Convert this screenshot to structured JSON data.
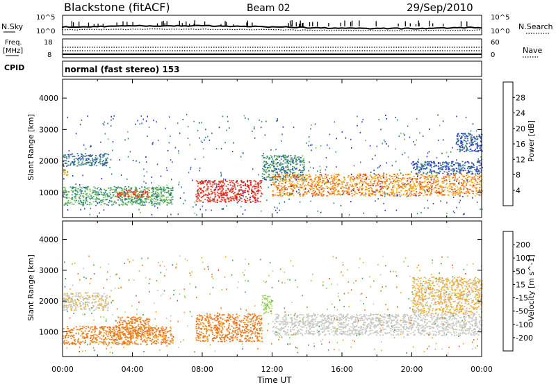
{
  "header": {
    "station": "Blackstone (fitACF)",
    "beam": "Beam 02",
    "date": "29/Sep/2010"
  },
  "noise_panel": {
    "left_label": "N.Sky",
    "right_label": "N.Search",
    "tick_top": "10^5",
    "tick_bottom": "10^0"
  },
  "freq_panel": {
    "left_label": "Freq.",
    "left_unit": "[MHz]",
    "tick_top": "18",
    "tick_bottom": "8",
    "right_label": "Nave",
    "right_tick_top": "60",
    "right_tick_bottom": "0"
  },
  "cpid_panel": {
    "label": "CPID",
    "mode": "normal (fast stereo) 153"
  },
  "colorbars": {
    "power": {
      "label": "Power [dB]",
      "ticks": [
        "4",
        "8",
        "12",
        "16",
        "20",
        "24",
        "28"
      ],
      "colors": [
        "#1f2fdc",
        "#3350a8",
        "#2d8a73",
        "#6abb55",
        "#f2c21c",
        "#ef8d1a",
        "#e24420",
        "#e0141c"
      ]
    },
    "velocity": {
      "label": "Velocity [m s^-1]",
      "ticks": [
        "200",
        "100",
        "50",
        "15",
        "-15",
        "-50",
        "-100",
        "-200"
      ],
      "colors": [
        "#2030c4",
        "#3b7f8e",
        "#3fa243",
        "#96d45a",
        "#c6c6c0",
        "#f0aa22",
        "#ec7418",
        "#e5421a",
        "#e0101a"
      ]
    }
  },
  "chart_data": [
    {
      "type": "heatmap",
      "title": "Power",
      "xlabel": "Time UT",
      "ylabel": "Slant Range [km]",
      "xlim": [
        "00:00",
        "24:00"
      ],
      "x_ticks": [
        "00:00",
        "04:00",
        "08:00",
        "12:00",
        "16:00",
        "20:00",
        "00:00"
      ],
      "ylim": [
        200,
        4600
      ],
      "y_ticks": [
        1000,
        2000,
        3000,
        4000
      ],
      "regions": [
        {
          "t0": 0.0,
          "t1": 2.6,
          "r0": 1850,
          "r1": 2250,
          "dB": 8
        },
        {
          "t0": 0.0,
          "t1": 0.3,
          "r0": 1500,
          "r1": 1750,
          "dB": 20
        },
        {
          "t0": 0.0,
          "t1": 6.3,
          "r0": 600,
          "r1": 1200,
          "dB": 12
        },
        {
          "t0": 3.0,
          "t1": 5.0,
          "r0": 850,
          "r1": 1100,
          "dB": 26
        },
        {
          "t0": 7.6,
          "t1": 11.4,
          "r0": 700,
          "r1": 1400,
          "dB": 28
        },
        {
          "t0": 11.4,
          "t1": 13.8,
          "r0": 1400,
          "r1": 2200,
          "dB": 10
        },
        {
          "t0": 12.0,
          "t1": 24.0,
          "r0": 900,
          "r1": 1600,
          "dB": 22
        },
        {
          "t0": 20.0,
          "t1": 24.0,
          "r0": 1600,
          "r1": 2000,
          "dB": 6
        },
        {
          "t0": 22.5,
          "t1": 24.0,
          "r0": 2300,
          "r1": 2900,
          "dB": 6
        }
      ]
    },
    {
      "type": "heatmap",
      "title": "Velocity",
      "xlabel": "Time UT",
      "ylabel": "Slant Range [km]",
      "xlim": [
        "00:00",
        "24:00"
      ],
      "x_ticks": [
        "00:00",
        "04:00",
        "08:00",
        "12:00",
        "16:00",
        "20:00",
        "00:00"
      ],
      "ylim": [
        200,
        4600
      ],
      "y_ticks": [
        1000,
        2000,
        3000,
        4000
      ],
      "regions": [
        {
          "t0": 0.0,
          "t1": 2.6,
          "r0": 1700,
          "r1": 2300,
          "v": -10
        },
        {
          "t0": 0.0,
          "t1": 6.3,
          "r0": 600,
          "r1": 1200,
          "v": -60
        },
        {
          "t0": 3.0,
          "t1": 5.0,
          "r0": 800,
          "r1": 1500,
          "v": -60
        },
        {
          "t0": 7.6,
          "t1": 11.4,
          "r0": 700,
          "r1": 1600,
          "v": -60
        },
        {
          "t0": 11.4,
          "t1": 12.0,
          "r0": 1600,
          "r1": 2200,
          "v": 30
        },
        {
          "t0": 12.0,
          "t1": 24.0,
          "r0": 900,
          "r1": 1600,
          "v": 0
        },
        {
          "t0": 20.0,
          "t1": 24.0,
          "r0": 1600,
          "r1": 2800,
          "v": -20
        }
      ]
    }
  ]
}
